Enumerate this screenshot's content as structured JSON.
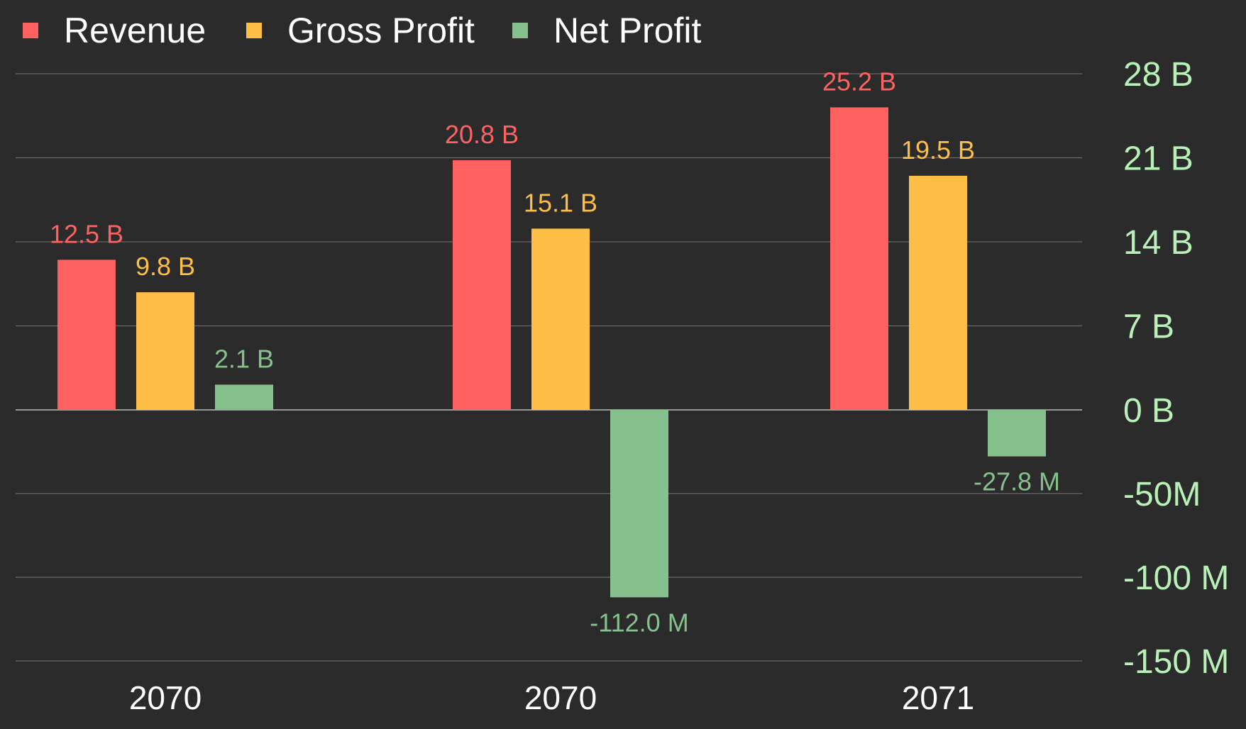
{
  "chart_data": {
    "type": "bar",
    "title": "",
    "xlabel": "",
    "ylabel": "",
    "categories": [
      "2070",
      "2070",
      "2071"
    ],
    "series": [
      {
        "name": "Revenue",
        "color": "#ff6161",
        "values": [
          12.5,
          20.8,
          25.2
        ],
        "unit": "B",
        "labels": [
          "12.5 B",
          "20.8 B",
          "25.2 B"
        ]
      },
      {
        "name": "Gross Profit",
        "color": "#ffbe45",
        "values": [
          9.8,
          15.1,
          19.5
        ],
        "unit": "B",
        "labels": [
          "9.8 B",
          "15.1 B",
          "19.5 B"
        ]
      },
      {
        "name": "Net Profit",
        "color": "#86c08c",
        "values": [
          2.1,
          -112.0,
          -27.8
        ],
        "value_units": [
          "B",
          "M",
          "M"
        ],
        "labels": [
          "2.1 B",
          "-112.0 M",
          "-27.8 M"
        ]
      }
    ],
    "y_axis": {
      "position": "right",
      "color": "#b8f0b8",
      "positive_ticks": [
        {
          "value": 0,
          "label": "0 B"
        },
        {
          "value": 7,
          "label": "7 B"
        },
        {
          "value": 14,
          "label": "14 B"
        },
        {
          "value": 21,
          "label": "21 B"
        },
        {
          "value": 28,
          "label": "28 B"
        }
      ],
      "negative_ticks": [
        {
          "value": -50,
          "label": "-50M"
        },
        {
          "value": -100,
          "label": "-100 M"
        },
        {
          "value": -150,
          "label": "-150 M"
        }
      ],
      "positive_unit": "B",
      "negative_unit": "M",
      "positive_range": [
        0,
        28
      ],
      "negative_range": [
        -150,
        0
      ]
    },
    "grid": true,
    "legend": {
      "placement": "top-left"
    }
  }
}
